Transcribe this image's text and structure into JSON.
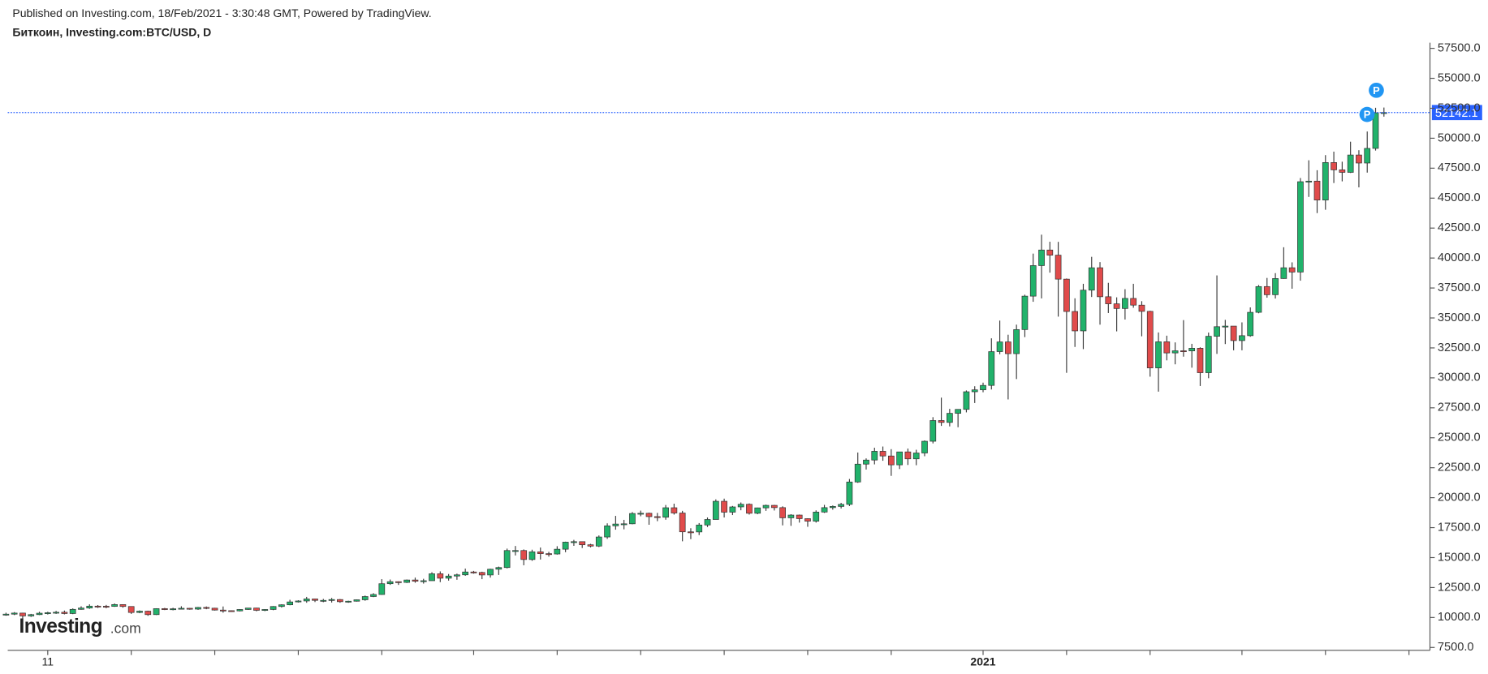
{
  "chart_data": {
    "type": "candlestick",
    "caption": "Published on Investing.com, 18/Feb/2021 - 3:30:48 GMT, Powered by TradingView.",
    "title": "Биткоин, Investing.com:BTC/USD, D",
    "logo": {
      "name": "Investing",
      "suffix": ".com"
    },
    "colors": {
      "up": "#21b26b",
      "down": "#e04b4b",
      "wick": "#3c3c3c",
      "last_price": "#2962ff"
    },
    "last_price": 52142.1,
    "annotations": [
      {
        "text": "P",
        "index": 164,
        "value": 52142.1
      },
      {
        "text": "P",
        "index": 165,
        "value": 54000
      }
    ],
    "xlim": [
      -0.7,
      170.4
    ],
    "xticks": [
      {
        "value": 5,
        "label": "11"
      },
      {
        "value": 15,
        "label": null
      },
      {
        "value": 25,
        "label": null
      },
      {
        "value": 35,
        "label": null
      },
      {
        "value": 45,
        "label": null
      },
      {
        "value": 56,
        "label": null
      },
      {
        "value": 66,
        "label": null
      },
      {
        "value": 76,
        "label": null
      },
      {
        "value": 86,
        "label": null
      },
      {
        "value": 96,
        "label": null
      },
      {
        "value": 106,
        "label": null
      },
      {
        "value": 117,
        "label": "2021"
      },
      {
        "value": 127,
        "label": null
      },
      {
        "value": 137,
        "label": null
      },
      {
        "value": 148,
        "label": null
      },
      {
        "value": 158,
        "label": null
      },
      {
        "value": 168,
        "label": null
      }
    ],
    "ylim": [
      7263,
      57975
    ],
    "yticks": [
      {
        "value": 7500,
        "label": "7500.0"
      },
      {
        "value": 10000,
        "label": "10000.0"
      },
      {
        "value": 12500,
        "label": "12500.0"
      },
      {
        "value": 15000,
        "label": "15000.0"
      },
      {
        "value": 17500,
        "label": "17500.0"
      },
      {
        "value": 20000,
        "label": "20000.0"
      },
      {
        "value": 22500,
        "label": "22500.0"
      },
      {
        "value": 25000,
        "label": "25000.0"
      },
      {
        "value": 27500,
        "label": "27500.0"
      },
      {
        "value": 30000,
        "label": "30000.0"
      },
      {
        "value": 32500,
        "label": "32500.0"
      },
      {
        "value": 35000,
        "label": "35000.0"
      },
      {
        "value": 37500,
        "label": "37500.0"
      },
      {
        "value": 40000,
        "label": "40000.0"
      },
      {
        "value": 42500,
        "label": "42500.0"
      },
      {
        "value": 45000,
        "label": "45000.0"
      },
      {
        "value": 47500,
        "label": "47500.0"
      },
      {
        "value": 50000,
        "label": "50000.0"
      },
      {
        "value": 52500,
        "label": "52500.0"
      },
      {
        "value": 55000,
        "label": "55000.0"
      },
      {
        "value": 57500,
        "label": "57500.0"
      }
    ],
    "open": [
      10250,
      10280,
      10370,
      10130,
      10240,
      10360,
      10400,
      10440,
      10330,
      10680,
      10790,
      10950,
      10940,
      10930,
      11080,
      10920,
      10420,
      10530,
      10240,
      10740,
      10690,
      10730,
      10770,
      10700,
      10840,
      10780,
      10620,
      10570,
      10550,
      10670,
      10790,
      10600,
      10670,
      10920,
      11060,
      11300,
      11380,
      11550,
      11430,
      11430,
      11500,
      11320,
      11360,
      11480,
      11750,
      11920,
      12820,
      12990,
      12930,
      13130,
      13030,
      13070,
      13650,
      13280,
      13460,
      13560,
      13800,
      13760,
      13550,
      14030,
      14170,
      15590,
      15590,
      14840,
      15480,
      15330,
      15300,
      15700,
      16290,
      16330,
      16070,
      15960,
      16720,
      17650,
      17800,
      17820,
      18680,
      18700,
      18420,
      18370,
      19160,
      18720,
      17150,
      17140,
      17720,
      18180,
      19700,
      18790,
      19230,
      19450,
      18700,
      19150,
      19360,
      19170,
      18320,
      18550,
      18250,
      18040,
      18800,
      19170,
      19270,
      19440,
      21310,
      22800,
      23140,
      23870,
      23480,
      22740,
      23820,
      23240,
      23730,
      24710,
      26440,
      26280,
      27040,
      27370,
      28840,
      29000,
      29370,
      32190,
      33000,
      32020,
      34030,
      36820,
      39370,
      40670,
      40240,
      38240,
      35540,
      33920,
      37320,
      39190,
      36770,
      36180,
      35790,
      36630,
      36070,
      35550,
      30830,
      33010,
      32080,
      32260,
      32250,
      32470,
      30430,
      33470,
      34270,
      34320,
      33110,
      33520,
      35470,
      37620,
      36940,
      38290,
      39190,
      38830,
      46370,
      46420,
      44840,
      47970,
      47360,
      47150,
      48600,
      47930,
      49150,
      52120
    ],
    "high": [
      10400,
      10450,
      10400,
      10300,
      10480,
      10480,
      10550,
      10580,
      10760,
      10940,
      11100,
      11040,
      11050,
      11170,
      11100,
      10930,
      10590,
      10570,
      10770,
      10800,
      10810,
      10940,
      10800,
      10880,
      10920,
      10810,
      10920,
      10600,
      10700,
      10800,
      10810,
      10700,
      10950,
      11100,
      11480,
      11440,
      11720,
      11560,
      11550,
      11630,
      11540,
      11400,
      11500,
      11830,
      12030,
      13200,
      13170,
      13020,
      13170,
      13330,
      13230,
      13780,
      13850,
      13630,
      13660,
      14080,
      13890,
      13820,
      14070,
      14250,
      15750,
      15970,
      15680,
      15660,
      15840,
      15480,
      15950,
      16330,
      16480,
      16340,
      16150,
      16850,
      17860,
      18480,
      18150,
      18800,
      18920,
      18750,
      18730,
      19390,
      19500,
      18900,
      17450,
      17880,
      18350,
      19860,
      19920,
      19310,
      19600,
      19520,
      19170,
      19420,
      19400,
      19280,
      18620,
      18590,
      18280,
      18940,
      19400,
      19350,
      19570,
      21560,
      23770,
      23280,
      24170,
      24270,
      24050,
      23830,
      24100,
      24000,
      24780,
      26720,
      28350,
      27410,
      27370,
      28950,
      29300,
      29600,
      33300,
      34780,
      33600,
      34440,
      36940,
      40370,
      41950,
      41360,
      41350,
      38290,
      36640,
      37850,
      40100,
      39660,
      37930,
      36720,
      37400,
      37850,
      36400,
      35600,
      33790,
      33520,
      32960,
      34820,
      32840,
      32550,
      33780,
      38550,
      34840,
      34320,
      34630,
      35880,
      37750,
      38340,
      38740,
      40900,
      39640,
      46680,
      48160,
      47330,
      48590,
      48880,
      48040,
      49710,
      49000,
      50560,
      52540,
      52560
    ],
    "low": [
      10150,
      10200,
      9900,
      10050,
      10200,
      10250,
      10300,
      10260,
      10280,
      10650,
      10720,
      10800,
      10770,
      10890,
      10820,
      10300,
      10360,
      10140,
      10210,
      10620,
      10600,
      10700,
      10650,
      10640,
      10690,
      10580,
      10400,
      10480,
      10510,
      10640,
      10520,
      10530,
      10610,
      10830,
      11020,
      11250,
      11230,
      11290,
      11280,
      11250,
      11230,
      11230,
      11330,
      11400,
      11700,
      11900,
      12720,
      12720,
      12880,
      12900,
      12830,
      13070,
      12950,
      13080,
      13150,
      13480,
      13660,
      13200,
      13330,
      13550,
      14100,
      15180,
      14360,
      14730,
      14840,
      15080,
      15250,
      15450,
      15980,
      15800,
      15850,
      15880,
      16560,
      17330,
      17360,
      17780,
      18450,
      17740,
      18040,
      18160,
      18590,
      16360,
      16540,
      16880,
      17550,
      18180,
      18350,
      18550,
      18950,
      18590,
      18620,
      18900,
      18930,
      17690,
      17650,
      17920,
      17570,
      17920,
      18730,
      19000,
      19100,
      19300,
      21240,
      22350,
      22780,
      23080,
      21820,
      22390,
      22730,
      22710,
      23460,
      24530,
      25990,
      25950,
      25880,
      27120,
      27900,
      28800,
      29030,
      31970,
      28200,
      29900,
      33400,
      36350,
      36630,
      38780,
      35110,
      30420,
      32580,
      32400,
      36750,
      34440,
      35410,
      33880,
      34870,
      35850,
      33470,
      30100,
      28850,
      31460,
      31130,
      31770,
      30850,
      29320,
      29970,
      32000,
      32820,
      32300,
      32300,
      33430,
      35390,
      36690,
      36620,
      38270,
      37440,
      38110,
      45100,
      43750,
      44030,
      46260,
      46400,
      47100,
      45900,
      47130,
      48970,
      51800
    ],
    "close": [
      10280,
      10370,
      10130,
      10240,
      10360,
      10400,
      10440,
      10330,
      10680,
      10790,
      10950,
      10940,
      10930,
      11080,
      10920,
      10420,
      10530,
      10240,
      10740,
      10690,
      10730,
      10770,
      10700,
      10840,
      10780,
      10620,
      10570,
      10550,
      10670,
      10790,
      10600,
      10670,
      10920,
      11060,
      11300,
      11380,
      11550,
      11430,
      11430,
      11500,
      11320,
      11360,
      11480,
      11750,
      11920,
      12820,
      12990,
      12930,
      13130,
      13030,
      13070,
      13650,
      13280,
      13460,
      13560,
      13800,
      13760,
      13550,
      14030,
      14170,
      15590,
      15590,
      14840,
      15480,
      15330,
      15300,
      15700,
      16290,
      16330,
      16070,
      15960,
      16720,
      17650,
      17800,
      17820,
      18680,
      18700,
      18420,
      18370,
      19160,
      18720,
      17150,
      17140,
      17720,
      18180,
      19700,
      18790,
      19230,
      19450,
      18700,
      19150,
      19360,
      19170,
      18320,
      18550,
      18250,
      18040,
      18800,
      19170,
      19270,
      19440,
      21310,
      22800,
      23140,
      23870,
      23480,
      22740,
      23820,
      23240,
      23730,
      24710,
      26440,
      26280,
      27040,
      27370,
      28840,
      29000,
      29370,
      32190,
      33000,
      32020,
      34030,
      36820,
      39370,
      40670,
      40240,
      38240,
      35540,
      33920,
      37320,
      39190,
      36770,
      36180,
      35790,
      36630,
      36070,
      35550,
      30830,
      33010,
      32080,
      32260,
      32250,
      32470,
      30430,
      33470,
      34270,
      34320,
      33110,
      33520,
      35470,
      37620,
      36940,
      38290,
      39190,
      38830,
      46370,
      46420,
      44840,
      47970,
      47360,
      47150,
      48600,
      47930,
      49150,
      52120,
      52140
    ]
  }
}
